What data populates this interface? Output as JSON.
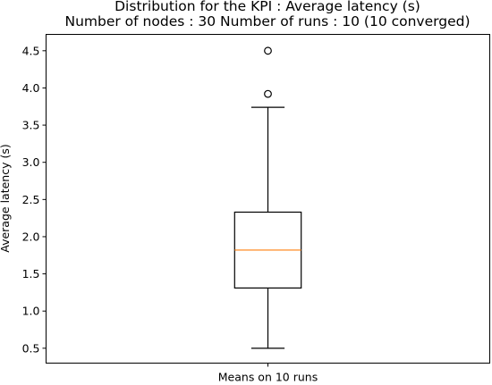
{
  "chart_data": {
    "type": "box",
    "title": "Distribution for the KPI : Average latency (s)",
    "subtitle": "Number of nodes : 30   Number of runs : 10 (10 converged)",
    "xlabel": "",
    "ylabel": "Average latency (s)",
    "categories": [
      "Means on 10 runs"
    ],
    "ylim": [
      0.3,
      4.72
    ],
    "yticks": [
      0.5,
      1.0,
      1.5,
      2.0,
      2.5,
      3.0,
      3.5,
      4.0,
      4.5
    ],
    "ytick_labels": [
      "0.5",
      "1.0",
      "1.5",
      "2.0",
      "2.5",
      "3.0",
      "3.5",
      "4.0",
      "4.5"
    ],
    "grid": false,
    "boxes": [
      {
        "label": "Means on 10 runs",
        "whisker_low": 0.5,
        "q1": 1.31,
        "median": 1.82,
        "q3": 2.33,
        "whisker_high": 3.74,
        "outliers": [
          3.92,
          4.5
        ]
      }
    ],
    "colors": {
      "box": "#000000",
      "median": "#ff7f0e",
      "outlier": "#000000"
    }
  }
}
